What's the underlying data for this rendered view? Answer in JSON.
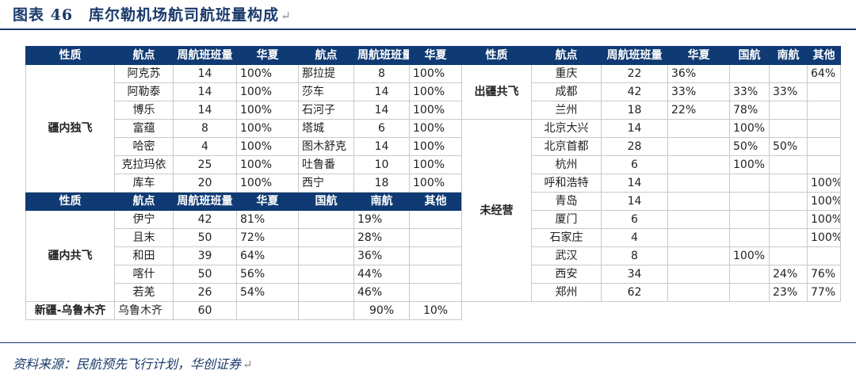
{
  "title": "图表 46　库尔勒机场航司航班量构成",
  "source": "资料来源：民航预先飞行计划，华创证券",
  "left": {
    "header1": [
      "性质",
      "航点",
      "周航班班量",
      "华夏",
      "航点",
      "周航班班量",
      "华夏"
    ],
    "section1": {
      "category": "疆内独飞",
      "rows": [
        [
          "阿克苏",
          "14",
          "100%",
          "那拉提",
          "8",
          "100%"
        ],
        [
          "阿勒泰",
          "14",
          "100%",
          "莎车",
          "14",
          "100%"
        ],
        [
          "博乐",
          "14",
          "100%",
          "石河子",
          "14",
          "100%"
        ],
        [
          "富蕴",
          "8",
          "100%",
          "塔城",
          "6",
          "100%"
        ],
        [
          "哈密",
          "4",
          "100%",
          "图木舒克",
          "14",
          "100%"
        ],
        [
          "克拉玛依",
          "25",
          "100%",
          "吐鲁番",
          "10",
          "100%"
        ],
        [
          "库车",
          "20",
          "100%",
          "西宁",
          "18",
          "100%"
        ]
      ]
    },
    "header2": [
      "性质",
      "航点",
      "周航班班量",
      "华夏",
      "国航",
      "南航",
      "其他"
    ],
    "section2": {
      "category": "疆内共飞",
      "rows": [
        [
          "伊宁",
          "42",
          "81%",
          "",
          "19%",
          ""
        ],
        [
          "且末",
          "50",
          "72%",
          "",
          "28%",
          ""
        ],
        [
          "和田",
          "39",
          "64%",
          "",
          "36%",
          ""
        ],
        [
          "喀什",
          "50",
          "56%",
          "",
          "44%",
          ""
        ],
        [
          "若羌",
          "26",
          "54%",
          "",
          "46%",
          ""
        ]
      ]
    },
    "section3": {
      "category": "新疆-乌鲁木齐",
      "rows": [
        [
          "乌鲁木齐",
          "60",
          "",
          "",
          "90%",
          "10%"
        ]
      ]
    }
  },
  "right": {
    "header": [
      "性质",
      "航点",
      "周航班班量",
      "华夏",
      "国航",
      "南航",
      "其他"
    ],
    "section1": {
      "category": "出疆共飞",
      "rows": [
        [
          "重庆",
          "22",
          "36%",
          "",
          "",
          "64%"
        ],
        [
          "成都",
          "42",
          "33%",
          "33%",
          "33%",
          ""
        ],
        [
          "兰州",
          "18",
          "22%",
          "78%",
          "",
          ""
        ]
      ]
    },
    "section2": {
      "category": "未经营",
      "rows": [
        [
          "北京大兴",
          "14",
          "",
          "100%",
          "",
          ""
        ],
        [
          "北京首都",
          "28",
          "",
          "50%",
          "50%",
          ""
        ],
        [
          "杭州",
          "6",
          "",
          "100%",
          "",
          ""
        ],
        [
          "呼和浩特",
          "14",
          "",
          "",
          "",
          "100%"
        ],
        [
          "青岛",
          "14",
          "",
          "",
          "",
          "100%"
        ],
        [
          "厦门",
          "6",
          "",
          "",
          "",
          "100%"
        ],
        [
          "石家庄",
          "4",
          "",
          "",
          "",
          "100%"
        ],
        [
          "武汉",
          "8",
          "",
          "100%",
          "",
          ""
        ],
        [
          "西安",
          "34",
          "",
          "",
          "24%",
          "76%"
        ],
        [
          "郑州",
          "62",
          "",
          "",
          "23%",
          "77%"
        ]
      ]
    }
  }
}
